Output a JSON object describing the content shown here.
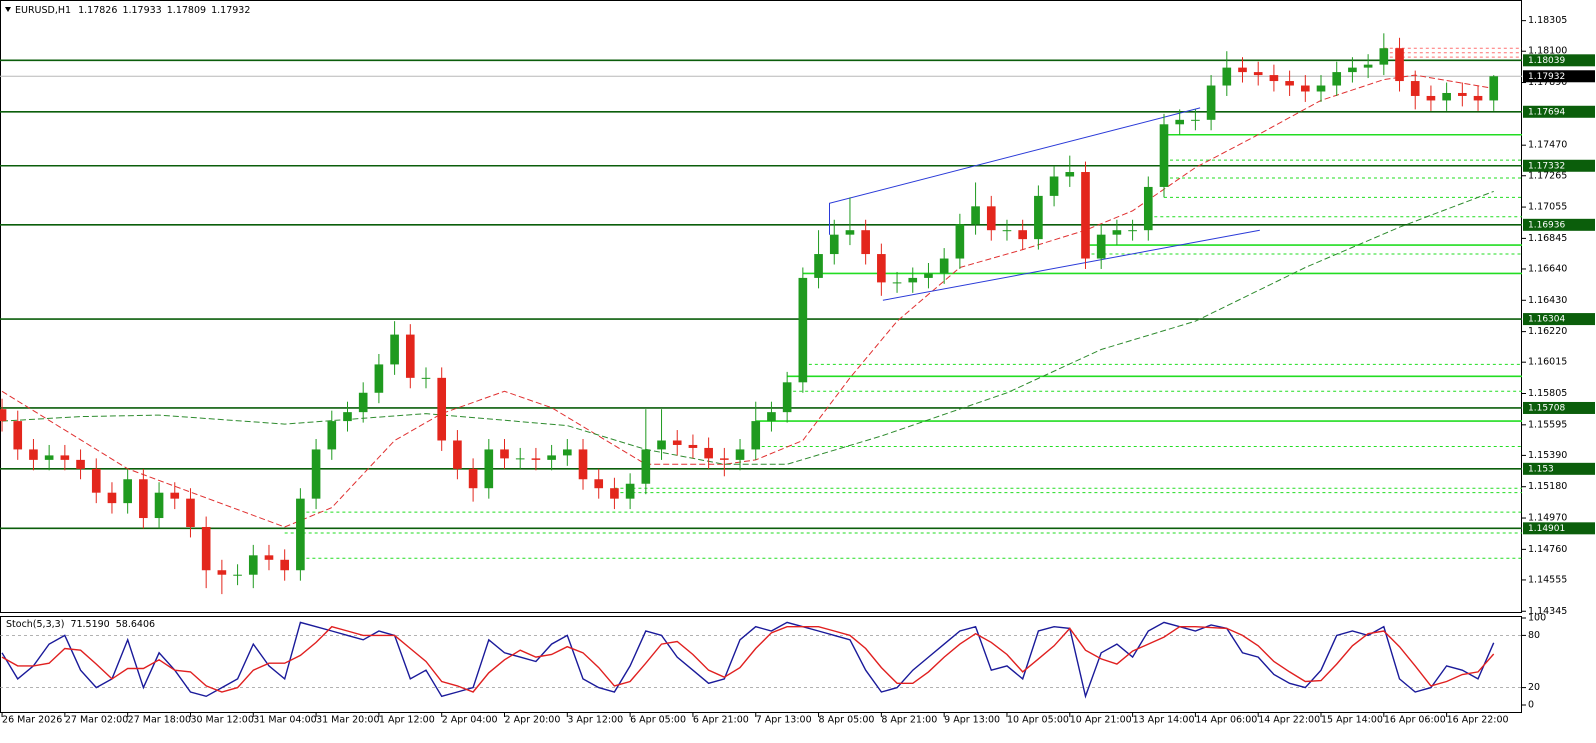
{
  "chart_data": {
    "type": "candlestick",
    "symbol": "EURUSD,H1",
    "header_values": [
      1.17826,
      1.17933,
      1.17809,
      1.17932
    ],
    "colors": {
      "up": "#1f9a1f",
      "down": "#e3261c"
    },
    "open": [
      1.157,
      1.1562,
      1.1543,
      1.1536,
      1.1539,
      1.1536,
      1.153,
      1.1514,
      1.1507,
      1.1523,
      1.1497,
      1.1514,
      1.151,
      1.1491,
      1.1462,
      1.1459,
      1.1459,
      1.1472,
      1.1469,
      1.1462,
      1.151,
      1.1543,
      1.1562,
      1.1568,
      1.1581,
      1.16,
      1.162,
      1.1591,
      1.1591,
      1.1549,
      1.153,
      1.1517,
      1.1543,
      1.1537,
      1.1537,
      1.1536,
      1.1539,
      1.1543,
      1.1523,
      1.1517,
      1.151,
      1.152,
      1.1543,
      1.1549,
      1.1546,
      1.1544,
      1.1537,
      1.1536,
      1.1543,
      1.1562,
      1.1568,
      1.1588,
      1.1658,
      1.1674,
      1.1687,
      1.169,
      1.1674,
      1.1655,
      1.1655,
      1.1658,
      1.1661,
      1.1671,
      1.1694,
      1.1706,
      1.169,
      1.169,
      1.1684,
      1.1713,
      1.1726,
      1.1729,
      1.1671,
      1.1687,
      1.169,
      1.169,
      1.1719,
      1.1761,
      1.1764,
      1.1764,
      1.1787,
      1.1799,
      1.1796,
      1.1794,
      1.179,
      1.1787,
      1.1783,
      1.1787,
      1.1796,
      1.1799,
      1.1801,
      1.1812,
      1.179,
      1.178,
      1.1777,
      1.1782,
      1.178,
      1.1777
    ],
    "high": [
      1.1577,
      1.1569,
      1.155,
      1.1546,
      1.1546,
      1.1543,
      1.1537,
      1.1521,
      1.153,
      1.153,
      1.1521,
      1.1521,
      1.1517,
      1.1498,
      1.1469,
      1.1466,
      1.1479,
      1.1479,
      1.1476,
      1.1517,
      1.155,
      1.1569,
      1.1575,
      1.1588,
      1.1607,
      1.1629,
      1.1627,
      1.1598,
      1.1598,
      1.1556,
      1.1537,
      1.155,
      1.155,
      1.1544,
      1.1544,
      1.1546,
      1.155,
      1.155,
      1.153,
      1.1524,
      1.1527,
      1.157,
      1.157,
      1.1556,
      1.1553,
      1.1551,
      1.1544,
      1.155,
      1.1575,
      1.1575,
      1.1595,
      1.1665,
      1.169,
      1.1697,
      1.1712,
      1.1697,
      1.1681,
      1.1662,
      1.1665,
      1.1668,
      1.1678,
      1.1701,
      1.1722,
      1.1713,
      1.1697,
      1.1697,
      1.172,
      1.1733,
      1.174,
      1.1736,
      1.1694,
      1.1697,
      1.1697,
      1.1726,
      1.1768,
      1.1771,
      1.1771,
      1.1794,
      1.181,
      1.1806,
      1.1803,
      1.1801,
      1.1797,
      1.1794,
      1.1794,
      1.1803,
      1.1806,
      1.1808,
      1.1822,
      1.1819,
      1.1797,
      1.1787,
      1.1789,
      1.1789,
      1.1787,
      1.1794
    ],
    "low": [
      1.1555,
      1.1536,
      1.1529,
      1.1529,
      1.1529,
      1.1523,
      1.1507,
      1.15,
      1.15,
      1.149,
      1.149,
      1.1503,
      1.1484,
      1.145,
      1.1446,
      1.1452,
      1.145,
      1.1462,
      1.1455,
      1.1455,
      1.1503,
      1.1536,
      1.1555,
      1.1561,
      1.1574,
      1.1593,
      1.1584,
      1.1584,
      1.1542,
      1.1523,
      1.1508,
      1.151,
      1.153,
      1.153,
      1.1529,
      1.1529,
      1.1532,
      1.1516,
      1.151,
      1.1503,
      1.1503,
      1.1513,
      1.1536,
      1.1539,
      1.1537,
      1.153,
      1.1525,
      1.1529,
      1.1536,
      1.1555,
      1.1561,
      1.1581,
      1.1651,
      1.1667,
      1.168,
      1.1667,
      1.1646,
      1.1648,
      1.1648,
      1.1651,
      1.1654,
      1.1664,
      1.1687,
      1.1683,
      1.1683,
      1.1677,
      1.1677,
      1.1706,
      1.1719,
      1.1664,
      1.1664,
      1.168,
      1.1683,
      1.1683,
      1.1712,
      1.1754,
      1.1757,
      1.1757,
      1.178,
      1.1789,
      1.1787,
      1.1783,
      1.178,
      1.1776,
      1.1776,
      1.178,
      1.1789,
      1.1792,
      1.1794,
      1.1783,
      1.1771,
      1.177,
      1.177,
      1.1773,
      1.177,
      1.177
    ],
    "close": [
      1.1562,
      1.1543,
      1.1536,
      1.1539,
      1.1536,
      1.153,
      1.1514,
      1.1507,
      1.1523,
      1.1497,
      1.1514,
      1.151,
      1.1491,
      1.1462,
      1.1459,
      1.1459,
      1.1472,
      1.1469,
      1.1462,
      1.151,
      1.1543,
      1.1562,
      1.1568,
      1.1581,
      1.16,
      1.162,
      1.1591,
      1.1591,
      1.1549,
      1.153,
      1.1517,
      1.1543,
      1.1537,
      1.1537,
      1.1536,
      1.1539,
      1.1543,
      1.1523,
      1.1517,
      1.151,
      1.152,
      1.1543,
      1.1549,
      1.1546,
      1.1544,
      1.1537,
      1.1536,
      1.1543,
      1.1562,
      1.1568,
      1.1588,
      1.1658,
      1.1674,
      1.1687,
      1.169,
      1.1674,
      1.1655,
      1.1655,
      1.1658,
      1.1661,
      1.1671,
      1.1694,
      1.1706,
      1.169,
      1.169,
      1.1684,
      1.1713,
      1.1726,
      1.1729,
      1.1671,
      1.1687,
      1.169,
      1.169,
      1.1719,
      1.1761,
      1.1764,
      1.1764,
      1.1787,
      1.1799,
      1.1796,
      1.1794,
      1.179,
      1.1787,
      1.1783,
      1.1787,
      1.1796,
      1.1799,
      1.1801,
      1.1812,
      1.179,
      1.178,
      1.1777,
      1.1782,
      1.178,
      1.1777,
      1.17932
    ],
    "xlim": [
      -0.13,
      96.8
    ],
    "xticks": [
      {
        "value": 0,
        "label": "26 Mar 2026"
      },
      {
        "value": 4,
        "label": "27 Mar 02:00"
      },
      {
        "value": 8,
        "label": "27 Mar 18:00"
      },
      {
        "value": 12,
        "label": "30 Mar 12:00"
      },
      {
        "value": 16,
        "label": "31 Mar 04:00"
      },
      {
        "value": 20,
        "label": "31 Mar 20:00"
      },
      {
        "value": 24,
        "label": "1 Apr 12:00"
      },
      {
        "value": 28,
        "label": "2 Apr 04:00"
      },
      {
        "value": 32,
        "label": "2 Apr 20:00"
      },
      {
        "value": 36,
        "label": "3 Apr 12:00"
      },
      {
        "value": 40,
        "label": "6 Apr 05:00"
      },
      {
        "value": 44,
        "label": "6 Apr 21:00"
      },
      {
        "value": 48,
        "label": "7 Apr 13:00"
      },
      {
        "value": 52,
        "label": "8 Apr 05:00"
      },
      {
        "value": 56,
        "label": "8 Apr 21:00"
      },
      {
        "value": 60,
        "label": "9 Apr 13:00"
      },
      {
        "value": 64,
        "label": "10 Apr 05:00"
      },
      {
        "value": 68,
        "label": "10 Apr 21:00"
      },
      {
        "value": 72,
        "label": "13 Apr 14:00"
      },
      {
        "value": 76,
        "label": "14 Apr 06:00"
      },
      {
        "value": 80,
        "label": "14 Apr 22:00"
      },
      {
        "value": 84,
        "label": "15 Apr 14:00"
      },
      {
        "value": 88,
        "label": "16 Apr 06:00"
      },
      {
        "value": 92,
        "label": "16 Apr 22:00"
      }
    ],
    "ylim": [
      1.1434,
      1.1843
    ],
    "yticks": [
      1.18305,
      {
        "value": 1.181,
        "label": "1.18100"
      },
      {
        "value": 1.1789,
        "label": "1.17890"
      },
      {
        "value": 1.1747,
        "label": "1.17470"
      },
      1.17265,
      1.17055,
      1.16845,
      {
        "value": 1.1664,
        "label": "1.16640"
      },
      {
        "value": 1.1643,
        "label": "1.16430"
      },
      {
        "value": 1.1622,
        "label": "1.16220"
      },
      1.16015,
      1.15805,
      1.15595,
      {
        "value": 1.1539,
        "label": "1.15390"
      },
      {
        "value": 1.1518,
        "label": "1.15180"
      },
      {
        "value": 1.1497,
        "label": "1.14970"
      },
      {
        "value": 1.1476,
        "label": "1.14760"
      },
      1.14555,
      1.14345
    ],
    "levels": [
      1.18039,
      1.17694,
      1.17332,
      1.16936,
      1.16304,
      1.15708,
      1.153,
      1.14901
    ],
    "level_color": "#0b5e0b",
    "current_price": 1.17932,
    "moving_averages": [
      {
        "color": "#e03030",
        "x": [
          0,
          8,
          18,
          21,
          25,
          28,
          32,
          35,
          41,
          46,
          48,
          51,
          54,
          57,
          61,
          65,
          69,
          72,
          76,
          80,
          84,
          88,
          90,
          95
        ],
        "values": [
          1.1582,
          1.153,
          1.1491,
          1.1504,
          1.1549,
          1.1567,
          1.1582,
          1.1571,
          1.1533,
          1.1533,
          1.1536,
          1.1549,
          1.1591,
          1.1629,
          1.1665,
          1.1677,
          1.169,
          1.1703,
          1.1732,
          1.1754,
          1.1777,
          1.1791,
          1.1794,
          1.1785
        ]
      },
      {
        "color": "#2e8b2e",
        "x": [
          0,
          5,
          10,
          18,
          27,
          36,
          41,
          46,
          50,
          56,
          64,
          70,
          76,
          83,
          89,
          95
        ],
        "values": [
          1.1562,
          1.1565,
          1.1566,
          1.156,
          1.1567,
          1.1559,
          1.1543,
          1.1533,
          1.1533,
          1.1552,
          1.1581,
          1.161,
          1.1629,
          1.1665,
          1.1692,
          1.1716
        ]
      }
    ],
    "channel_color": "#2a3ad8",
    "channel": [
      {
        "x": [
          52.7,
          52.7,
          76.3
        ],
        "values": [
          1.1687,
          1.1708,
          1.1772
        ]
      },
      {
        "x": [
          56.1,
          80.1
        ],
        "values": [
          1.1643,
          1.169
        ]
      }
    ],
    "support_lines": [
      {
        "value": 1.1754,
        "start": 74,
        "dashed": false,
        "color": "#22dd22"
      },
      {
        "value": 1.1737,
        "start": 74,
        "dashed": true,
        "color": "#22dd22"
      },
      {
        "value": 1.1725,
        "start": 74,
        "dashed": true,
        "color": "#22dd22"
      },
      {
        "value": 1.1712,
        "start": 74,
        "dashed": true,
        "color": "#22dd22"
      },
      {
        "value": 1.1699,
        "start": 73,
        "dashed": true,
        "color": "#22dd22"
      },
      {
        "value": 1.168,
        "start": 69,
        "dashed": false,
        "color": "#22dd22"
      },
      {
        "value": 1.1674,
        "start": 69,
        "dashed": true,
        "color": "#22dd22"
      },
      {
        "value": 1.1661,
        "start": 51,
        "dashed": false,
        "color": "#22dd22"
      },
      {
        "value": 1.16,
        "start": 51,
        "dashed": true,
        "color": "#22dd22"
      },
      {
        "value": 1.1592,
        "start": 50,
        "dashed": false,
        "color": "#22dd22"
      },
      {
        "value": 1.1582,
        "start": 50,
        "dashed": true,
        "color": "#22dd22"
      },
      {
        "value": 1.1562,
        "start": 48,
        "dashed": false,
        "color": "#22dd22"
      },
      {
        "value": 1.1545,
        "start": 48,
        "dashed": true,
        "color": "#22dd22"
      },
      {
        "value": 1.1517,
        "start": 39,
        "dashed": true,
        "color": "#22dd22"
      },
      {
        "value": 1.1514,
        "start": 39,
        "dashed": true,
        "color": "#22dd22"
      },
      {
        "value": 1.1501,
        "start": 19,
        "dashed": true,
        "color": "#22dd22"
      },
      {
        "value": 1.1487,
        "start": 18,
        "dashed": true,
        "color": "#22dd22"
      },
      {
        "value": 1.147,
        "start": 19,
        "dashed": true,
        "color": "#22dd22"
      },
      {
        "value": 1.1812,
        "start": 88,
        "dashed": true,
        "color": "#ff7070"
      },
      {
        "value": 1.1809,
        "start": 88,
        "dashed": true,
        "color": "#ff7070"
      },
      {
        "value": 1.1806,
        "start": 88,
        "dashed": true,
        "color": "#ff7070"
      }
    ],
    "stoch": {
      "type": "line",
      "title": "Stoch(5,3,3)",
      "value_labels": [
        "71.5190",
        "58.6406"
      ],
      "ylim": [
        0,
        100
      ],
      "yticks": [
        100,
        80,
        20,
        0
      ],
      "levels": [
        80,
        20
      ],
      "series": [
        {
          "color": "#1a1a9a",
          "values": [
            60,
            30,
            45,
            70,
            80,
            40,
            20,
            30,
            75,
            20,
            60,
            40,
            15,
            10,
            20,
            30,
            70,
            45,
            30,
            95,
            90,
            85,
            80,
            75,
            85,
            80,
            30,
            40,
            10,
            15,
            20,
            75,
            60,
            55,
            50,
            70,
            80,
            30,
            20,
            15,
            45,
            85,
            80,
            55,
            40,
            25,
            30,
            75,
            90,
            85,
            95,
            90,
            85,
            80,
            75,
            40,
            15,
            20,
            40,
            55,
            70,
            85,
            90,
            40,
            45,
            30,
            85,
            90,
            88,
            10,
            60,
            70,
            55,
            85,
            95,
            90,
            85,
            92,
            88,
            60,
            55,
            35,
            25,
            20,
            40,
            80,
            85,
            80,
            90,
            30,
            15,
            20,
            45,
            40,
            30,
            71.519
          ]
        },
        {
          "color": "#e02020",
          "values": [
            55,
            45,
            45,
            48,
            65,
            63,
            47,
            30,
            42,
            42,
            52,
            40,
            38,
            22,
            15,
            20,
            40,
            48,
            48,
            57,
            72,
            90,
            85,
            80,
            80,
            80,
            65,
            50,
            27,
            22,
            15,
            37,
            52,
            63,
            55,
            58,
            67,
            60,
            43,
            22,
            27,
            48,
            70,
            73,
            58,
            40,
            32,
            43,
            65,
            83,
            90,
            90,
            90,
            85,
            80,
            65,
            43,
            25,
            25,
            38,
            55,
            70,
            82,
            72,
            58,
            38,
            53,
            68,
            88,
            63,
            53,
            47,
            62,
            70,
            78,
            90,
            90,
            89,
            88,
            80,
            68,
            50,
            38,
            27,
            28,
            47,
            68,
            82,
            85,
            67,
            45,
            22,
            27,
            35,
            38,
            58.6406
          ]
        }
      ]
    }
  }
}
